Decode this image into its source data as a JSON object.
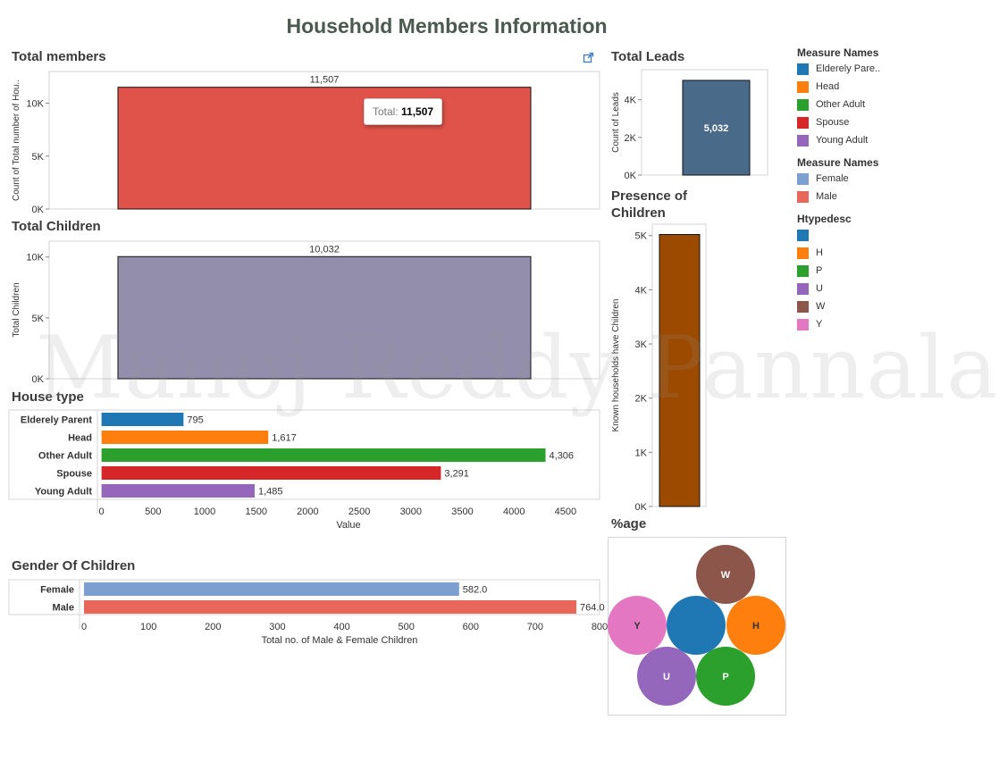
{
  "dashboard": {
    "title": "Household Members Information",
    "watermark": "Manoj Reddy Pannala"
  },
  "colors": {
    "elderly": "#1f77b4",
    "head": "#ff7f0e",
    "other_adult": "#2ca02c",
    "spouse": "#d62728",
    "young_adult": "#9467bd",
    "female": "#7b9fd1",
    "male": "#e8675a",
    "members_bar": "#e0534a",
    "children_bar": "#938eac",
    "leads_bar": "#4a6a8a",
    "presence_bar": "#9b4a00",
    "w_color": "#8c564b",
    "y_color": "#e377c2"
  },
  "tooltip": {
    "label": "Total:",
    "value": "11,507"
  },
  "legends": {
    "measure_names_1": {
      "title": "Measure Names",
      "items": [
        "Elderely Pare..",
        "Head",
        "Other Adult",
        "Spouse",
        "Young Adult"
      ]
    },
    "measure_names_2": {
      "title": "Measure Names",
      "items": [
        "Female",
        "Male"
      ]
    },
    "htypedesc": {
      "title": "Htypedesc",
      "items": [
        "",
        "H",
        "P",
        "U",
        "W",
        "Y"
      ]
    }
  },
  "chart_data": [
    {
      "id": "total_members",
      "type": "bar",
      "title": "Total members",
      "ylabel": "Count of Total number of Hou..",
      "categories": [
        ""
      ],
      "values": [
        11507
      ],
      "labels": [
        "11,507"
      ],
      "ylim": [
        0,
        13000
      ],
      "yticks": [
        0,
        5000,
        10000
      ],
      "yticklabels": [
        "0K",
        "5K",
        "10K"
      ]
    },
    {
      "id": "total_children",
      "type": "bar",
      "title": "Total Children",
      "ylabel": "Total Children",
      "categories": [
        ""
      ],
      "values": [
        10032
      ],
      "labels": [
        "10,032"
      ],
      "ylim": [
        0,
        11300
      ],
      "yticks": [
        0,
        5000,
        10000
      ],
      "yticklabels": [
        "0K",
        "5K",
        "10K"
      ]
    },
    {
      "id": "house_type",
      "type": "bar",
      "orientation": "horizontal",
      "title": "House type",
      "xlabel": "Value",
      "categories": [
        "Elderely Parent",
        "Head",
        "Other Adult",
        "Spouse",
        "Young Adult"
      ],
      "values": [
        795,
        1617,
        4306,
        3291,
        1485
      ],
      "labels": [
        "795",
        "1,617",
        "4,306",
        "3,291",
        "1,485"
      ],
      "xlim": [
        -40,
        4830
      ],
      "xticks": [
        0,
        500,
        1000,
        1500,
        2000,
        2500,
        3000,
        3500,
        4000,
        4500
      ]
    },
    {
      "id": "gender_children",
      "type": "bar",
      "orientation": "horizontal",
      "title": "Gender Of Children",
      "xlabel": "Total no. of Male & Female Children",
      "categories": [
        "Female",
        "Male"
      ],
      "values": [
        582.0,
        764.0
      ],
      "labels": [
        "582.0",
        "764.0"
      ],
      "xlim": [
        -7,
        800
      ],
      "xticks": [
        0,
        100,
        200,
        300,
        400,
        500,
        600,
        700,
        800
      ]
    },
    {
      "id": "total_leads",
      "type": "bar",
      "title": "Total Leads",
      "ylabel": "Count of Leads",
      "categories": [
        ""
      ],
      "values": [
        5032
      ],
      "labels": [
        "5,032"
      ],
      "ylim": [
        0,
        5600
      ],
      "yticks": [
        0,
        2000,
        4000
      ],
      "yticklabels": [
        "0K",
        "2K",
        "4K"
      ]
    },
    {
      "id": "presence_children",
      "type": "bar",
      "title": "Presence of Children",
      "ylabel": "Known households have Children",
      "categories": [
        ""
      ],
      "values": [
        5020
      ],
      "ylim": [
        0,
        5210
      ],
      "yticks": [
        0,
        1000,
        2000,
        3000,
        4000,
        5000
      ],
      "yticklabels": [
        "0K",
        "1K",
        "2K",
        "3K",
        "4K",
        "5K"
      ]
    },
    {
      "id": "percentage",
      "type": "bubble",
      "title": "%age",
      "categories": [
        "W",
        "Y",
        "",
        "H",
        "U",
        "P"
      ]
    }
  ]
}
